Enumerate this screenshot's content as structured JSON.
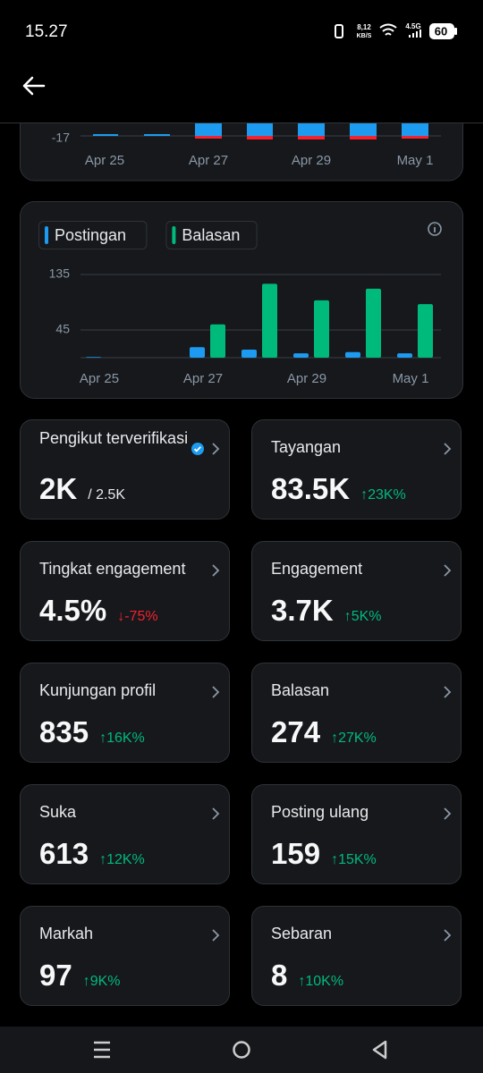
{
  "status_bar": {
    "time": "15.27",
    "net_speed": "8,12",
    "net_unit": "KB/S",
    "network": "4.5G",
    "battery": "60"
  },
  "top_chart": {
    "ytick_label": "-17",
    "x_labels": [
      "Apr 25",
      "Apr 27",
      "Apr 29",
      "May 1"
    ]
  },
  "chart_data": {
    "type": "bar",
    "categories": [
      "Apr 25",
      null,
      "Apr 27",
      null,
      "Apr 29",
      null,
      "May 1"
    ],
    "series": [
      {
        "name": "Postingan",
        "color": "#1d9bf0",
        "values": [
          1,
          0,
          17,
          13,
          7,
          9,
          7
        ]
      },
      {
        "name": "Balasan",
        "color": "#00ba7c",
        "values": [
          0,
          0,
          54,
          120,
          93,
          112,
          87
        ]
      }
    ],
    "ylim": [
      0,
      135
    ],
    "yticks": [
      45,
      135
    ],
    "grid": true
  },
  "cards": [
    {
      "title": "Pengikut terverifikasi",
      "value": "2K",
      "sub": "/ 2.5K",
      "verified": true
    },
    {
      "title": "Tayangan",
      "value": "83.5K",
      "change": "↑23K%",
      "trend": "up"
    },
    {
      "title": "Tingkat engagement",
      "value": "4.5%",
      "change": "↓-75%",
      "trend": "down"
    },
    {
      "title": "Engagement",
      "value": "3.7K",
      "change": "↑5K%",
      "trend": "up"
    },
    {
      "title": "Kunjungan profil",
      "value": "835",
      "change": "↑16K%",
      "trend": "up"
    },
    {
      "title": "Balasan",
      "value": "274",
      "change": "↑27K%",
      "trend": "up"
    },
    {
      "title": "Suka",
      "value": "613",
      "change": "↑12K%",
      "trend": "up"
    },
    {
      "title": "Posting ulang",
      "value": "159",
      "change": "↑15K%",
      "trend": "up"
    },
    {
      "title": "Markah",
      "value": "97",
      "change": "↑9K%",
      "trend": "up"
    },
    {
      "title": "Sebaran",
      "value": "8",
      "change": "↑10K%",
      "trend": "up"
    }
  ]
}
